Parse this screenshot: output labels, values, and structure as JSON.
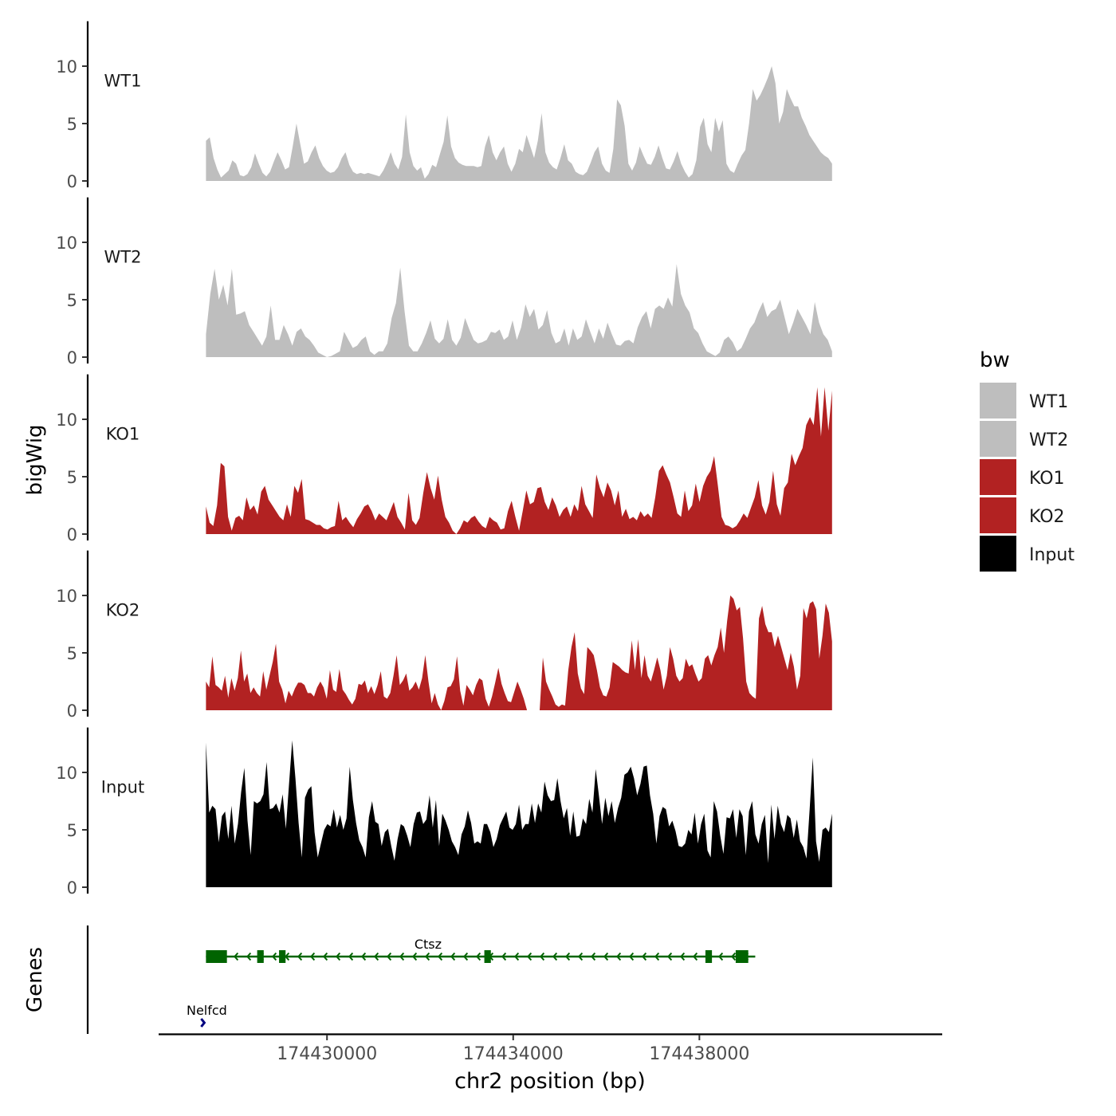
{
  "chart_data": {
    "type": "area",
    "ylabel": "bigWig",
    "xlabel": "chr2 position (bp)",
    "xlim": [
      174426400,
      174443200
    ],
    "ylim": [
      0,
      13.5
    ],
    "yticks": [
      0,
      5,
      10
    ],
    "xticks": [
      174430000,
      174434000,
      174438000
    ],
    "xtick_labels": [
      "174430000",
      "174434000",
      "174438000"
    ],
    "legend": {
      "title": "bw",
      "position": "right",
      "entries": [
        {
          "label": "WT1",
          "color": "#bebebe"
        },
        {
          "label": "WT2",
          "color": "#bebebe"
        },
        {
          "label": "KO1",
          "color": "#b22222"
        },
        {
          "label": "KO2",
          "color": "#b22222"
        },
        {
          "label": "Input",
          "color": "#000000"
        }
      ]
    },
    "x_start": 174427400,
    "x_end": 174440850,
    "tracks": [
      {
        "name": "WT1",
        "color": "#bebebe",
        "values": [
          3.5,
          3.8,
          2.0,
          1.0,
          0.3,
          0.6,
          0.9,
          1.8,
          1.5,
          0.5,
          0.4,
          0.6,
          1.2,
          2.4,
          1.5,
          0.7,
          0.4,
          0.8,
          1.7,
          2.5,
          1.8,
          1.0,
          1.2,
          3.0,
          5.0,
          3.2,
          1.5,
          1.7,
          2.5,
          3.1,
          2.0,
          1.3,
          0.9,
          0.7,
          0.8,
          1.2,
          2.0,
          2.5,
          1.4,
          0.8,
          0.6,
          0.7,
          0.6,
          0.7,
          0.6,
          0.5,
          0.4,
          0.9,
          1.6,
          2.5,
          1.5,
          1.0,
          2.1,
          5.8,
          2.5,
          1.3,
          0.9,
          1.2,
          0.2,
          0.6,
          1.4,
          1.2,
          2.3,
          3.4,
          5.7,
          3.0,
          2.0,
          1.6,
          1.4,
          1.3,
          1.3,
          1.3,
          1.2,
          1.3,
          3.0,
          4.0,
          2.5,
          1.8,
          2.5,
          3.0,
          1.5,
          0.8,
          1.5,
          2.8,
          2.5,
          4.0,
          3.0,
          2.0,
          3.5,
          5.9,
          2.5,
          1.6,
          1.2,
          1.0,
          2.0,
          3.2,
          1.8,
          1.5,
          0.8,
          0.6,
          0.5,
          0.8,
          1.6,
          2.5,
          3.0,
          1.5,
          0.9,
          0.7,
          2.8,
          7.1,
          6.6,
          4.8,
          1.5,
          0.9,
          1.6,
          3.0,
          2.2,
          1.5,
          1.4,
          2.1,
          3.1,
          2.0,
          1.1,
          1.0,
          1.7,
          2.6,
          1.5,
          0.8,
          0.3,
          0.6,
          1.8,
          4.7,
          5.5,
          3.2,
          2.5,
          5.5,
          4.3,
          5.3,
          1.5,
          0.9,
          0.7,
          1.5,
          2.2,
          2.7,
          5.0,
          8.0,
          7.0,
          7.5,
          8.2,
          9.0,
          10.0,
          8.5,
          5.0,
          6.0,
          8.0,
          7.2,
          6.5,
          6.5,
          5.5,
          4.8,
          4.0,
          3.5,
          3.0,
          2.5,
          2.2,
          2.0,
          1.5
        ]
      },
      {
        "name": "WT2",
        "color": "#bebebe",
        "values": [
          2.0,
          5.5,
          7.7,
          5.0,
          6.3,
          4.5,
          7.7,
          3.7,
          3.8,
          4.0,
          2.8,
          2.2,
          1.6,
          1.0,
          1.8,
          4.5,
          1.5,
          1.5,
          2.8,
          2.0,
          1.0,
          2.2,
          2.5,
          1.8,
          1.5,
          1.0,
          0.4,
          0.2,
          0.0,
          0.1,
          0.3,
          0.5,
          2.2,
          1.5,
          0.8,
          1.0,
          1.5,
          1.8,
          0.5,
          0.2,
          0.5,
          0.5,
          1.2,
          3.4,
          4.7,
          7.8,
          4.0,
          1.0,
          0.5,
          0.5,
          1.2,
          2.1,
          3.2,
          1.6,
          1.2,
          1.6,
          3.3,
          1.5,
          1.0,
          1.7,
          3.4,
          2.4,
          1.5,
          1.2,
          1.3,
          1.5,
          2.2,
          2.1,
          2.4,
          1.5,
          1.8,
          3.2,
          1.5,
          2.6,
          4.6,
          3.5,
          4.2,
          2.4,
          2.8,
          4.1,
          2.1,
          1.2,
          1.4,
          2.5,
          1.0,
          2.5,
          1.5,
          1.8,
          3.3,
          2.2,
          1.2,
          2.5,
          1.6,
          3.0,
          2.0,
          1.1,
          1.0,
          1.4,
          1.5,
          1.2,
          2.6,
          3.5,
          4.0,
          2.5,
          4.2,
          4.5,
          4.2,
          5.2,
          4.4,
          8.1,
          5.5,
          4.5,
          3.9,
          2.5,
          2.1,
          1.2,
          0.5,
          0.3,
          0.1,
          0.4,
          1.5,
          1.8,
          1.3,
          0.5,
          0.8,
          1.6,
          2.5,
          3.0,
          4.0,
          4.8,
          3.5,
          4.0,
          4.2,
          5.0,
          3.5,
          2.0,
          3.0,
          4.2,
          3.5,
          2.8,
          2.0,
          4.8,
          3.0,
          2.0,
          1.5,
          0.5
        ]
      },
      {
        "name": "KO1",
        "color": "#b22222",
        "values": [
          2.4,
          1.0,
          0.7,
          2.5,
          6.2,
          5.9,
          1.5,
          0.3,
          1.4,
          1.6,
          1.2,
          3.2,
          2.1,
          2.5,
          1.7,
          3.7,
          4.2,
          3.0,
          2.5,
          2.0,
          1.5,
          1.2,
          2.6,
          1.5,
          4.2,
          3.6,
          4.8,
          1.3,
          1.2,
          1.0,
          0.8,
          0.8,
          0.5,
          0.4,
          0.6,
          0.7,
          2.9,
          1.2,
          1.5,
          1.0,
          0.6,
          1.3,
          1.8,
          2.4,
          2.6,
          2.0,
          1.2,
          1.8,
          1.5,
          1.2,
          2.0,
          2.8,
          1.5,
          1.0,
          0.4,
          3.6,
          1.2,
          0.8,
          1.4,
          3.6,
          5.4,
          4.0,
          3.0,
          5.1,
          3.0,
          1.5,
          1.0,
          0.3,
          0.0,
          0.5,
          1.2,
          1.0,
          1.4,
          1.6,
          1.1,
          0.7,
          0.5,
          1.5,
          1.2,
          1.0,
          0.4,
          0.5,
          2.0,
          2.9,
          1.5,
          0.3,
          2.0,
          3.8,
          2.6,
          2.8,
          4.0,
          4.1,
          2.8,
          2.1,
          3.2,
          2.5,
          1.5,
          2.1,
          2.4,
          1.5,
          2.6,
          2.0,
          4.2,
          2.6,
          2.0,
          1.4,
          5.2,
          4.0,
          3.2,
          4.5,
          3.8,
          2.5,
          3.8,
          1.5,
          2.2,
          1.3,
          1.5,
          1.2,
          2.0,
          1.5,
          1.8,
          1.4,
          3.2,
          5.5,
          6.0,
          5.2,
          4.5,
          3.2,
          1.8,
          1.5,
          3.8,
          2.0,
          2.5,
          4.4,
          2.8,
          4.2,
          5.0,
          5.5,
          6.8,
          4.2,
          1.5,
          0.8,
          0.7,
          0.5,
          0.7,
          1.2,
          1.8,
          1.4,
          2.3,
          3.2,
          4.7,
          2.5,
          1.7,
          2.8,
          5.5,
          2.6,
          1.6,
          4.0,
          4.5,
          7.0,
          6.0,
          6.8,
          7.5,
          9.5,
          10.2,
          9.5,
          12.8,
          8.5,
          12.8,
          9.0,
          12.5
        ]
      },
      {
        "name": "KO2",
        "color": "#b22222",
        "values": [
          2.5,
          2.0,
          4.7,
          2.2,
          2.0,
          1.7,
          3.0,
          1.1,
          2.8,
          1.7,
          2.8,
          5.2,
          2.5,
          3.2,
          1.5,
          2.0,
          1.5,
          1.2,
          3.4,
          1.8,
          3.0,
          4.2,
          5.8,
          2.5,
          1.8,
          0.6,
          1.7,
          1.2,
          1.9,
          2.4,
          2.4,
          2.2,
          1.5,
          1.5,
          1.2,
          2.0,
          2.5,
          2.0,
          1.0,
          3.5,
          1.8,
          1.6,
          3.6,
          1.8,
          1.4,
          0.9,
          0.5,
          1.0,
          2.3,
          2.2,
          2.6,
          1.5,
          2.1,
          1.4,
          2.2,
          3.4,
          1.2,
          1.0,
          1.5,
          3.0,
          4.8,
          2.2,
          2.6,
          3.2,
          1.7,
          2.0,
          2.5,
          1.8,
          2.8,
          4.8,
          2.5,
          0.6,
          1.5,
          0.5,
          0.0,
          0.8,
          2.0,
          2.1,
          2.7,
          4.7,
          1.7,
          0.4,
          2.2,
          1.8,
          1.3,
          2.2,
          2.8,
          2.6,
          1.0,
          0.3,
          1.2,
          2.4,
          3.7,
          2.3,
          1.5,
          0.8,
          0.7,
          1.6,
          2.5,
          1.8,
          1.0,
          0.0,
          0.0,
          0.0,
          0.0,
          0.0,
          4.6,
          2.5,
          1.8,
          1.2,
          0.5,
          0.3,
          0.5,
          0.4,
          3.5,
          5.5,
          6.8,
          3.2,
          1.9,
          1.4,
          5.5,
          5.2,
          4.8,
          3.5,
          2.0,
          1.3,
          1.2,
          2.0,
          4.2,
          4.0,
          3.8,
          3.5,
          3.3,
          3.2,
          6.1,
          3.5,
          6.2,
          2.8,
          4.8,
          3.0,
          2.5,
          3.5,
          4.6,
          3.5,
          1.8,
          3.0,
          5.5,
          4.5,
          3.0,
          2.5,
          2.8,
          4.5,
          3.8,
          4.0,
          3.2,
          2.5,
          2.8,
          4.5,
          4.8,
          3.9,
          4.8,
          5.5,
          7.2,
          5.0,
          7.8,
          10.0,
          9.7,
          8.7,
          9.0,
          6.3,
          2.5,
          1.5,
          1.2,
          1.0,
          8.0,
          9.1,
          7.5,
          6.8,
          6.8,
          5.5,
          6.5,
          5.5,
          4.5,
          3.5,
          5.0,
          3.8,
          1.8,
          3.0,
          8.9,
          8.0,
          9.3,
          9.5,
          8.8,
          4.5,
          6.5,
          9.3,
          8.5,
          6.0
        ]
      },
      {
        "name": "Input",
        "color": "#000000",
        "values": [
          12.6,
          6.5,
          7.1,
          6.8,
          3.9,
          6.2,
          6.6,
          4.2,
          7.1,
          3.8,
          5.5,
          8.3,
          10.4,
          5.8,
          2.8,
          7.5,
          7.3,
          7.5,
          8.1,
          10.9,
          6.8,
          6.9,
          7.3,
          6.5,
          8.1,
          5.1,
          9.0,
          12.8,
          9.5,
          5.6,
          2.6,
          7.8,
          8.5,
          8.8,
          4.8,
          2.6,
          3.8,
          5.0,
          5.5,
          5.3,
          6.8,
          5.2,
          6.3,
          5.0,
          6.0,
          10.5,
          7.6,
          5.6,
          4.1,
          3.5,
          2.6,
          6.1,
          7.5,
          5.7,
          5.5,
          3.6,
          4.8,
          5.1,
          3.6,
          2.3,
          4.2,
          5.5,
          5.3,
          4.5,
          3.5,
          5.5,
          6.5,
          6.6,
          5.5,
          5.9,
          8.0,
          5.2,
          7.6,
          3.6,
          6.4,
          5.8,
          5.0,
          4.0,
          3.5,
          2.8,
          4.6,
          5.3,
          6.7,
          5.6,
          3.8,
          4.0,
          3.8,
          5.5,
          5.5,
          4.8,
          3.5,
          4.2,
          5.4,
          6.0,
          6.6,
          5.2,
          5.0,
          5.5,
          7.2,
          5.0,
          5.5,
          5.5,
          7.3,
          5.6,
          7.3,
          6.5,
          9.2,
          8.0,
          7.5,
          7.6,
          9.5,
          7.5,
          6.0,
          6.9,
          4.5,
          6.6,
          4.4,
          4.5,
          6.0,
          5.5,
          7.7,
          6.5,
          10.3,
          8.0,
          5.5,
          7.8,
          6.2,
          7.5,
          5.6,
          6.9,
          7.8,
          9.8,
          10.0,
          10.5,
          9.5,
          8.0,
          9.0,
          10.5,
          10.6,
          8.0,
          6.4,
          3.8,
          6.2,
          7.0,
          6.8,
          5.3,
          5.8,
          4.9,
          3.6,
          3.5,
          3.8,
          5.0,
          4.6,
          6.5,
          3.8,
          5.5,
          6.4,
          3.2,
          2.6,
          7.5,
          6.6,
          4.5,
          2.9,
          6.1,
          6.0,
          6.8,
          4.3,
          6.8,
          6.2,
          2.8,
          6.6,
          7.5,
          4.6,
          3.8,
          5.5,
          6.3,
          2.1,
          7.2,
          4.2,
          7.1,
          5.5,
          4.8,
          6.3,
          6.0,
          4.3,
          5.9,
          4.0,
          3.5,
          2.5,
          6.8,
          11.3,
          4.0,
          2.2,
          5.0,
          5.2,
          4.8,
          6.4
        ]
      }
    ],
    "genes_track": {
      "label": "Genes",
      "genes": [
        {
          "name": "Ctsz",
          "start": 174427400,
          "end": 174439200,
          "strand": "-",
          "color": "#006400",
          "exons": [
            [
              174427400,
              174427850
            ],
            [
              174428500,
              174428640
            ],
            [
              174428970,
              174429110
            ],
            [
              174433380,
              174433520
            ],
            [
              174438130,
              174438270
            ],
            [
              174438780,
              174439050
            ]
          ]
        },
        {
          "name": "Nelfcd",
          "start": 174427150,
          "end": 174427400,
          "strand": "+",
          "color": "#000080",
          "exons": []
        }
      ]
    }
  }
}
